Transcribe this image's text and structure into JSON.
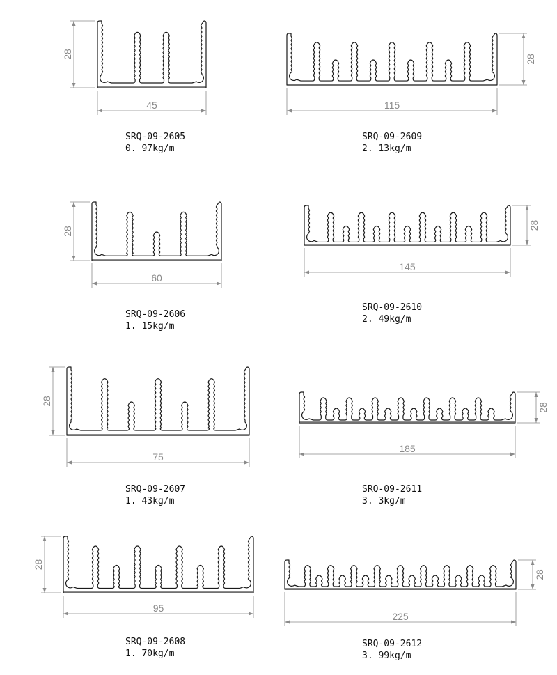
{
  "profiles": [
    {
      "code": "SRQ-09-2605",
      "weight": "0. 97kg/m",
      "width_label": "45",
      "height_label": "28",
      "width_mm": 45,
      "height_mm": 28,
      "fin_count": 2,
      "height_dim_side": "left"
    },
    {
      "code": "SRQ-09-2609",
      "weight": "2. 13kg/m",
      "width_label": "115",
      "height_label": "28",
      "width_mm": 115,
      "height_mm": 28,
      "fin_count": 9,
      "height_dim_side": "right"
    },
    {
      "code": "SRQ-09-2606",
      "weight": "1. 15kg/m",
      "width_label": "60",
      "height_label": "28",
      "width_mm": 60,
      "height_mm": 28,
      "fin_count": 3,
      "height_dim_side": "left"
    },
    {
      "code": "SRQ-09-2610",
      "weight": "2. 49kg/m",
      "width_label": "145",
      "height_label": "28",
      "width_mm": 145,
      "height_mm": 28,
      "fin_count": 11,
      "height_dim_side": "right"
    },
    {
      "code": "SRQ-09-2607",
      "weight": "1. 43kg/m",
      "width_label": "75",
      "height_label": "28",
      "width_mm": 75,
      "height_mm": 28,
      "fin_count": 5,
      "height_dim_side": "left"
    },
    {
      "code": "SRQ-09-2611",
      "weight": "3. 3kg/m",
      "width_label": "185",
      "height_label": "28",
      "width_mm": 185,
      "height_mm": 28,
      "fin_count": 14,
      "height_dim_side": "right"
    },
    {
      "code": "SRQ-09-2608",
      "weight": "1. 70kg/m",
      "width_label": "95",
      "height_label": "28",
      "width_mm": 95,
      "height_mm": 28,
      "fin_count": 7,
      "height_dim_side": "left"
    },
    {
      "code": "SRQ-09-2612",
      "weight": "3. 99kg/m",
      "width_label": "225",
      "height_label": "28",
      "width_mm": 225,
      "height_mm": 28,
      "fin_count": 17,
      "height_dim_side": "right"
    }
  ],
  "colors": {
    "outline": "#1a1a1a",
    "dimension": "#8a8a8a"
  }
}
